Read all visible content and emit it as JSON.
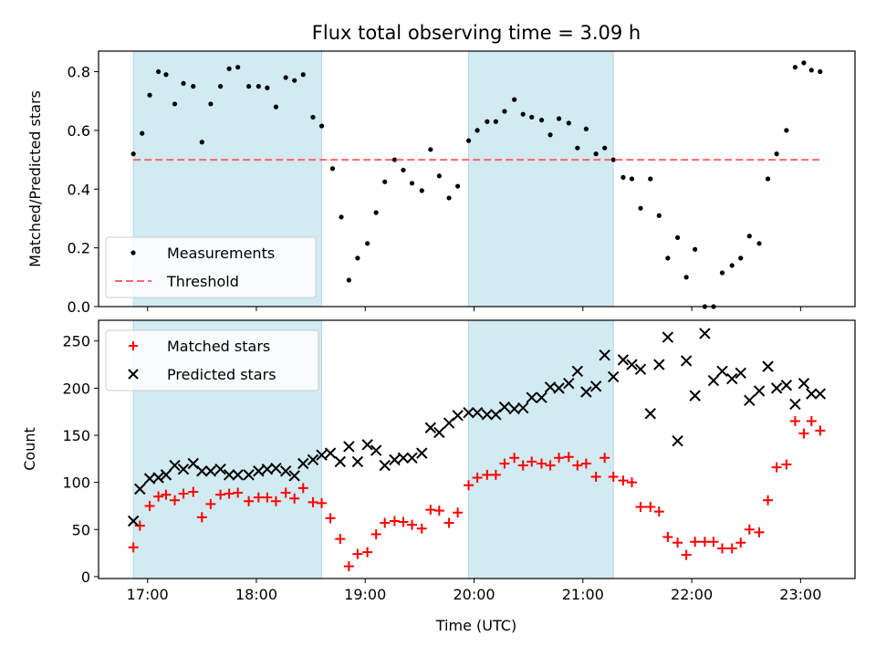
{
  "chart_data": {
    "title": "Flux total observing time = 3.09 h",
    "xlabel": "Time (UTC)",
    "x_ticks": [
      17,
      18,
      19,
      20,
      21,
      22,
      23
    ],
    "x_tick_labels": [
      "17:00",
      "18:00",
      "19:00",
      "20:00",
      "21:00",
      "22:00",
      "23:00"
    ],
    "xlim": [
      16.55,
      23.5
    ],
    "shaded_intervals": [
      [
        16.87,
        18.6
      ],
      [
        19.95,
        21.28
      ]
    ],
    "shade_color": "#add8e6",
    "panels": [
      {
        "type": "scatter",
        "ylabel": "Matched/Predicted stars",
        "ylim": [
          0,
          0.87
        ],
        "y_ticks": [
          0,
          0.2,
          0.4,
          0.6,
          0.8
        ],
        "y_tick_labels": [
          "0.0",
          "0.2",
          "0.4",
          "0.6",
          "0.8"
        ],
        "legend_position": "lower-left",
        "series": [
          {
            "name": "Measurements",
            "marker": "dot",
            "color": "#000000",
            "x": [
              16.87,
              16.95,
              17.02,
              17.1,
              17.17,
              17.25,
              17.33,
              17.42,
              17.5,
              17.58,
              17.67,
              17.75,
              17.83,
              17.93,
              18.02,
              18.1,
              18.18,
              18.27,
              18.35,
              18.43,
              18.52,
              18.6,
              18.7,
              18.78,
              18.85,
              18.93,
              19.02,
              19.1,
              19.18,
              19.27,
              19.35,
              19.43,
              19.52,
              19.6,
              19.68,
              19.77,
              19.85,
              19.95,
              20.03,
              20.12,
              20.2,
              20.28,
              20.37,
              20.45,
              20.53,
              20.62,
              20.7,
              20.78,
              20.87,
              20.95,
              21.03,
              21.12,
              21.2,
              21.28,
              21.37,
              21.45,
              21.53,
              21.62,
              21.7,
              21.78,
              21.87,
              21.95,
              22.03,
              22.12,
              22.2,
              22.28,
              22.37,
              22.45,
              22.53,
              22.62,
              22.7,
              22.78,
              22.87,
              22.95,
              23.03,
              23.1,
              23.18
            ],
            "y": [
              0.52,
              0.59,
              0.72,
              0.8,
              0.79,
              0.69,
              0.76,
              0.75,
              0.56,
              0.69,
              0.75,
              0.81,
              0.815,
              0.75,
              0.75,
              0.745,
              0.68,
              0.78,
              0.77,
              0.79,
              0.645,
              0.615,
              0.47,
              0.305,
              0.09,
              0.165,
              0.215,
              0.32,
              0.425,
              0.5,
              0.465,
              0.42,
              0.395,
              0.535,
              0.445,
              0.37,
              0.41,
              0.565,
              0.6,
              0.63,
              0.63,
              0.665,
              0.705,
              0.655,
              0.645,
              0.635,
              0.585,
              0.64,
              0.625,
              0.54,
              0.605,
              0.52,
              0.54,
              0.5,
              0.44,
              0.435,
              0.335,
              0.435,
              0.31,
              0.165,
              0.235,
              0.1,
              0.195,
              0,
              0,
              0.115,
              0.14,
              0.165,
              0.24,
              0.215,
              0.435,
              0.52,
              0.6,
              0.815,
              0.83,
              0.805,
              0.8
            ]
          },
          {
            "name": "Threshold",
            "marker": "dashed-line",
            "color": "#ff6666",
            "x": [
              16.87,
              23.2
            ],
            "y": [
              0.5,
              0.5
            ]
          }
        ]
      },
      {
        "type": "scatter",
        "ylabel": "Count",
        "ylim": [
          -2,
          272
        ],
        "y_ticks": [
          0,
          50,
          100,
          150,
          200,
          250
        ],
        "y_tick_labels": [
          "0",
          "50",
          "100",
          "150",
          "200",
          "250"
        ],
        "legend_position": "upper-left",
        "series": [
          {
            "name": "Matched stars",
            "marker": "plus",
            "color": "#ff0000",
            "x": [
              16.87,
              16.93,
              17.02,
              17.1,
              17.17,
              17.25,
              17.33,
              17.42,
              17.5,
              17.58,
              17.67,
              17.75,
              17.83,
              17.93,
              18.02,
              18.1,
              18.18,
              18.27,
              18.35,
              18.43,
              18.52,
              18.6,
              18.68,
              18.77,
              18.85,
              18.93,
              19.02,
              19.1,
              19.18,
              19.27,
              19.35,
              19.43,
              19.52,
              19.6,
              19.68,
              19.77,
              19.85,
              19.95,
              20.03,
              20.12,
              20.2,
              20.28,
              20.37,
              20.45,
              20.53,
              20.62,
              20.7,
              20.78,
              20.87,
              20.95,
              21.03,
              21.12,
              21.2,
              21.28,
              21.37,
              21.45,
              21.53,
              21.62,
              21.7,
              21.78,
              21.87,
              21.95,
              22.03,
              22.12,
              22.2,
              22.28,
              22.37,
              22.45,
              22.53,
              22.62,
              22.7,
              22.78,
              22.87,
              22.95,
              23.03,
              23.1,
              23.18
            ],
            "y": [
              31,
              54,
              75,
              85,
              87,
              81,
              88,
              90,
              63,
              77,
              87,
              88,
              89,
              80,
              84,
              84,
              80,
              89,
              83,
              94,
              79,
              78,
              62,
              40,
              11,
              24,
              26,
              45,
              57,
              59,
              58,
              55,
              51,
              71,
              70,
              57,
              68,
              97,
              105,
              108,
              108,
              120,
              126,
              118,
              122,
              120,
              118,
              126,
              127,
              118,
              120,
              106,
              126,
              106,
              102,
              100,
              74,
              74,
              69,
              42,
              36,
              23,
              37,
              37,
              37,
              30,
              30,
              36,
              50,
              47,
              81,
              116,
              119,
              165,
              152,
              165,
              155
            ]
          },
          {
            "name": "Predicted stars",
            "marker": "x",
            "color": "#000000",
            "x": [
              16.87,
              16.93,
              17.02,
              17.1,
              17.17,
              17.25,
              17.33,
              17.42,
              17.5,
              17.58,
              17.67,
              17.75,
              17.83,
              17.93,
              18.02,
              18.1,
              18.18,
              18.27,
              18.35,
              18.43,
              18.52,
              18.6,
              18.68,
              18.77,
              18.85,
              18.93,
              19.02,
              19.1,
              19.18,
              19.27,
              19.35,
              19.43,
              19.52,
              19.6,
              19.68,
              19.77,
              19.85,
              19.95,
              20.03,
              20.12,
              20.2,
              20.28,
              20.37,
              20.45,
              20.53,
              20.62,
              20.7,
              20.78,
              20.87,
              20.95,
              21.03,
              21.12,
              21.2,
              21.28,
              21.37,
              21.45,
              21.53,
              21.62,
              21.7,
              21.78,
              21.87,
              21.95,
              22.03,
              22.12,
              22.2,
              22.28,
              22.37,
              22.45,
              22.53,
              22.62,
              22.7,
              22.78,
              22.87,
              22.95,
              23.03,
              23.1,
              23.18
            ],
            "y": [
              59,
              93,
              104,
              105,
              108,
              118,
              114,
              120,
              112,
              112,
              114,
              108,
              108,
              108,
              112,
              114,
              115,
              112,
              107,
              120,
              124,
              129,
              131,
              122,
              138,
              122,
              140,
              134,
              118,
              124,
              126,
              126,
              131,
              158,
              153,
              163,
              171,
              174,
              174,
              172,
              172,
              180,
              178,
              179,
              190,
              190,
              201,
              200,
              205,
              218,
              196,
              202,
              235,
              212,
              230,
              225,
              220,
              173,
              225,
              254,
              144,
              229,
              192,
              258,
              208,
              218,
              210,
              216,
              187,
              197,
              223,
              200,
              203,
              183,
              205,
              194,
              194
            ]
          }
        ]
      }
    ]
  }
}
